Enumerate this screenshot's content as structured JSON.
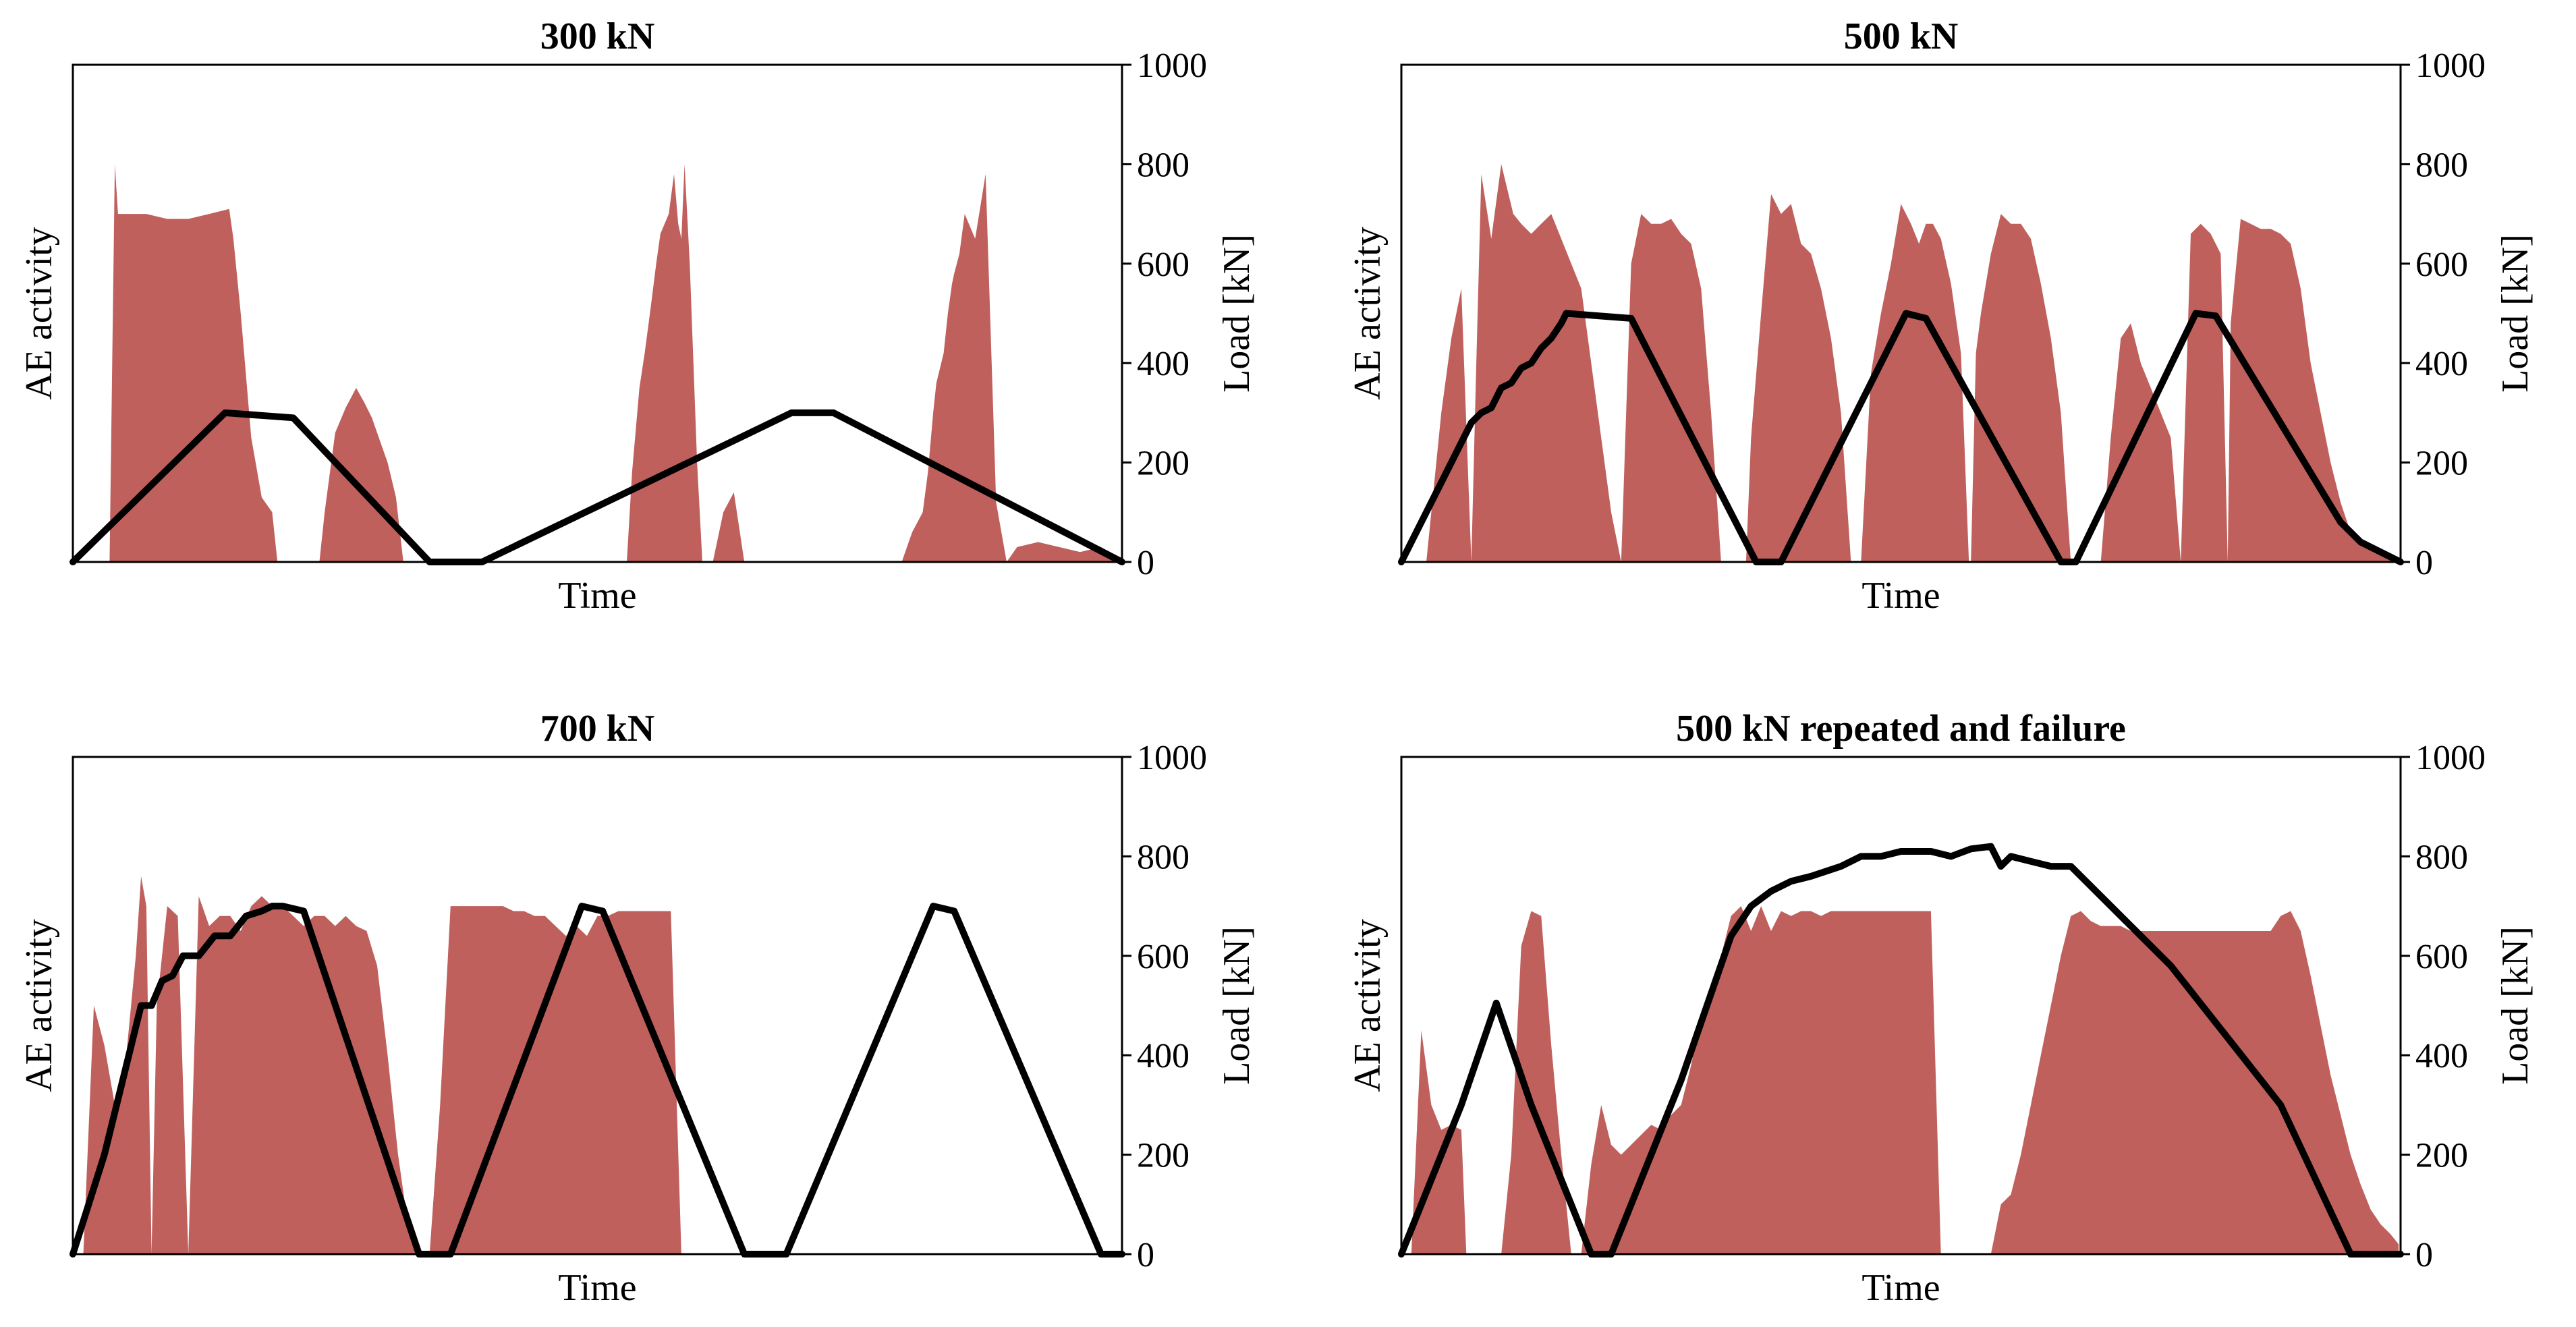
{
  "colors": {
    "ae_fill": "#c0605d",
    "load_line": "#000000",
    "axes": "#000000"
  },
  "chart_data": [
    {
      "type": "area",
      "title": "300 kN",
      "xlabel": "Time",
      "ylabel_left": "AE activity",
      "ylabel_right": "Load [kN]",
      "xlim": [
        0,
        100
      ],
      "ylim_right": [
        0,
        1000
      ],
      "right_ticks": [
        0,
        200,
        400,
        600,
        800,
        1000
      ],
      "series": [
        {
          "name": "AE activity",
          "kind": "area",
          "x": [
            3.2,
            3.5,
            4,
            4.3,
            5,
            7,
            9,
            11,
            13,
            14.9,
            15.3,
            16,
            17,
            18,
            19,
            19.5,
            20,
            21,
            22,
            23.5,
            24,
            24.5,
            25,
            26,
            27,
            27.8,
            28.5,
            29.5,
            30,
            30.8,
            31.5,
            32.2,
            33,
            34,
            35,
            37,
            38,
            40,
            42,
            44,
            46,
            47,
            48,
            49,
            50,
            51,
            52,
            52.8,
            53.3,
            54,
            54.5,
            55,
            55.6,
            56,
            56.8,
            57.3,
            57.7,
            58,
            58.3,
            58.8,
            59.5,
            60,
            61,
            62,
            63,
            64,
            65,
            66,
            67,
            68,
            68.5,
            69,
            69.5,
            70,
            71,
            73,
            74.5,
            75,
            76,
            77,
            78,
            79,
            80,
            81,
            81.5,
            82,
            82.3,
            83,
            83.4,
            83.8,
            84,
            84.5,
            85,
            86,
            87,
            88,
            89,
            90,
            92,
            94,
            96,
            98,
            100
          ],
          "y": [
            0,
            0,
            800,
            700,
            700,
            700,
            690,
            690,
            700,
            710,
            650,
            500,
            250,
            130,
            100,
            0,
            0,
            0,
            0,
            0,
            100,
            180,
            260,
            310,
            350,
            320,
            290,
            230,
            200,
            130,
            0,
            0,
            0,
            0,
            0,
            0,
            0,
            0,
            0,
            0,
            0,
            0,
            0,
            0,
            0,
            0,
            0,
            0,
            180,
            350,
            420,
            500,
            600,
            660,
            700,
            780,
            680,
            650,
            800,
            600,
            200,
            0,
            0,
            100,
            140,
            0,
            0,
            0,
            0,
            0,
            0,
            0,
            0,
            0,
            0,
            0,
            0,
            0,
            0,
            0,
            0,
            0,
            60,
            100,
            180,
            300,
            360,
            420,
            500,
            560,
            580,
            620,
            700,
            650,
            780,
            120,
            0,
            30,
            40,
            30,
            20,
            30,
            0
          ]
        },
        {
          "name": "Load [kN]",
          "kind": "line",
          "x": [
            0,
            14.5,
            21,
            34,
            39,
            68.5,
            72.5,
            100
          ],
          "y": [
            0,
            300,
            290,
            0,
            0,
            300,
            300,
            0
          ]
        }
      ]
    },
    {
      "type": "area",
      "title": "500 kN",
      "xlabel": "Time",
      "ylabel_left": "AE activity",
      "ylabel_right": "Load [kN]",
      "xlim": [
        0,
        100
      ],
      "ylim_right": [
        0,
        1000
      ],
      "right_ticks": [
        0,
        200,
        400,
        600,
        800,
        1000
      ],
      "series": [
        {
          "name": "AE activity",
          "kind": "area",
          "x": [
            2.5,
            3,
            4,
            5,
            6,
            7,
            7.5,
            8,
            9,
            10,
            11.2,
            12,
            13,
            14,
            15,
            16,
            17,
            18,
            19,
            20,
            21,
            22,
            23,
            24,
            25,
            26,
            27,
            28,
            29,
            30,
            31,
            32,
            33,
            34,
            34.5,
            35,
            36,
            37,
            38,
            39,
            40,
            41,
            42,
            43,
            44,
            45,
            46,
            47,
            48,
            49,
            50,
            51,
            51.8,
            52.5,
            53.2,
            54,
            55,
            56,
            56.8,
            57,
            57.5,
            58,
            59,
            60,
            61,
            62,
            63,
            64,
            65,
            66,
            67,
            68,
            69,
            70,
            71,
            72,
            73,
            74,
            75,
            76,
            77,
            78,
            79,
            80,
            81,
            82,
            82.7,
            83,
            84,
            85,
            86,
            87,
            88,
            89,
            90,
            91,
            92,
            93,
            94,
            95,
            96,
            97,
            98,
            99,
            99.8
          ],
          "y": [
            0,
            100,
            300,
            450,
            550,
            0,
            400,
            780,
            650,
            800,
            700,
            680,
            660,
            680,
            700,
            650,
            600,
            550,
            400,
            250,
            100,
            0,
            600,
            700,
            680,
            680,
            690,
            660,
            640,
            550,
            300,
            0,
            0,
            0,
            0,
            250,
            500,
            740,
            700,
            720,
            640,
            620,
            550,
            450,
            300,
            0,
            0,
            380,
            500,
            600,
            720,
            680,
            640,
            680,
            680,
            650,
            560,
            420,
            0,
            0,
            420,
            500,
            620,
            700,
            680,
            680,
            650,
            560,
            450,
            300,
            0,
            0,
            0,
            0,
            250,
            450,
            480,
            400,
            350,
            300,
            250,
            0,
            660,
            680,
            660,
            620,
            0,
            480,
            690,
            680,
            670,
            670,
            660,
            640,
            550,
            400,
            300,
            200,
            120,
            60,
            40,
            30,
            20,
            10,
            0
          ]
        },
        {
          "name": "Load [kN]",
          "kind": "line",
          "x": [
            0,
            7,
            8,
            9,
            10,
            11,
            12,
            13,
            14,
            15,
            16,
            16.5,
            23,
            35.5,
            38,
            50.5,
            52.5,
            66,
            67.5,
            79.5,
            81.5,
            94,
            96,
            100
          ],
          "y": [
            0,
            280,
            300,
            310,
            350,
            360,
            390,
            400,
            430,
            450,
            480,
            500,
            490,
            0,
            0,
            500,
            490,
            0,
            0,
            500,
            495,
            80,
            40,
            0
          ]
        }
      ]
    },
    {
      "type": "area",
      "title": "700 kN",
      "xlabel": "Time",
      "ylabel_left": "AE activity",
      "ylabel_right": "Load [kN]",
      "xlim": [
        0,
        100
      ],
      "ylim_right": [
        0,
        1000
      ],
      "right_ticks": [
        0,
        200,
        400,
        600,
        800,
        1000
      ],
      "series": [
        {
          "name": "AE activity",
          "kind": "area",
          "x": [
            1,
            2,
            3,
            4,
            5,
            6,
            6.5,
            7,
            7.5,
            8,
            9,
            10,
            11,
            12,
            13,
            14,
            15,
            16,
            17,
            18,
            19,
            20,
            21,
            22,
            23,
            24,
            25,
            26,
            27,
            28,
            29,
            30,
            31,
            32,
            33,
            34,
            35,
            36,
            37,
            38,
            39,
            40,
            41,
            42,
            43,
            44,
            45,
            46,
            47,
            48,
            49,
            50,
            51,
            52,
            53,
            54,
            55,
            56,
            57,
            58,
            59,
            60,
            61,
            62,
            63,
            64,
            65,
            66,
            67,
            68,
            69,
            70,
            71,
            72,
            73,
            74,
            75,
            76,
            77,
            78,
            79,
            80,
            81,
            82,
            83,
            84,
            85,
            86,
            87,
            88,
            89,
            90,
            91,
            92,
            93,
            94,
            95,
            96,
            97,
            98,
            99,
            99.8
          ],
          "y": [
            0,
            500,
            420,
            300,
            380,
            600,
            760,
            700,
            0,
            500,
            700,
            680,
            0,
            720,
            660,
            680,
            680,
            650,
            700,
            720,
            700,
            700,
            680,
            660,
            680,
            680,
            660,
            680,
            660,
            650,
            580,
            400,
            200,
            50,
            0,
            0,
            300,
            700,
            700,
            700,
            700,
            700,
            700,
            690,
            690,
            680,
            680,
            660,
            640,
            660,
            640,
            680,
            680,
            690,
            690,
            690,
            690,
            690,
            690,
            0,
            0,
            0,
            0,
            0,
            0,
            0,
            0,
            0,
            0,
            0,
            0,
            0,
            0,
            0,
            0,
            0,
            0,
            0,
            0,
            0,
            0,
            0,
            0,
            0,
            0,
            0,
            0,
            0,
            0,
            0,
            0,
            0,
            0,
            0,
            0,
            0,
            0,
            0,
            0,
            0,
            0,
            0
          ]
        },
        {
          "name": "Load [kN]",
          "kind": "line",
          "x": [
            0,
            3,
            6.5,
            7.5,
            8.5,
            9.5,
            10.5,
            12,
            13.5,
            15,
            16.5,
            18,
            19,
            20,
            22,
            33,
            36,
            48.5,
            50.5,
            64,
            68,
            82,
            84,
            98,
            100
          ],
          "y": [
            0,
            200,
            500,
            500,
            550,
            560,
            600,
            600,
            640,
            640,
            680,
            690,
            700,
            700,
            690,
            0,
            0,
            700,
            690,
            0,
            0,
            700,
            690,
            0,
            0
          ]
        }
      ]
    },
    {
      "type": "area",
      "title": "500 kN repeated and failure",
      "xlabel": "Time",
      "ylabel_left": "AE activity",
      "ylabel_right": "Load [kN]",
      "xlim": [
        0,
        100
      ],
      "ylim_right": [
        0,
        1000
      ],
      "right_ticks": [
        0,
        200,
        400,
        600,
        800,
        1000
      ],
      "series": [
        {
          "name": "AE activity",
          "kind": "area",
          "x": [
            1,
            2,
            3,
            4,
            5,
            6,
            6.5,
            7,
            7.5,
            8,
            9,
            10,
            11,
            12,
            13,
            14,
            15,
            16,
            17,
            18,
            19,
            20,
            21,
            22,
            23,
            24,
            25,
            26,
            27,
            28,
            29,
            30,
            31,
            32,
            33,
            34,
            35,
            36,
            37,
            38,
            39,
            40,
            41,
            42,
            43,
            44,
            45,
            46,
            47,
            48,
            49,
            50,
            51,
            52,
            53,
            54,
            55,
            56,
            57,
            58,
            59,
            60,
            61,
            62,
            63,
            64,
            65,
            66,
            67,
            68,
            69,
            70,
            71,
            72,
            73,
            74,
            75,
            76,
            77,
            78,
            79,
            80,
            81,
            82,
            83,
            84,
            85,
            86,
            87,
            88,
            89,
            90,
            91,
            92,
            93,
            94,
            95,
            96,
            97,
            98,
            99,
            99.8
          ],
          "y": [
            0,
            450,
            300,
            250,
            260,
            250,
            0,
            0,
            0,
            0,
            0,
            0,
            200,
            620,
            690,
            680,
            420,
            200,
            0,
            0,
            180,
            300,
            220,
            200,
            220,
            240,
            260,
            250,
            280,
            300,
            380,
            480,
            520,
            600,
            680,
            700,
            650,
            700,
            650,
            690,
            680,
            690,
            690,
            680,
            690,
            690,
            690,
            690,
            690,
            690,
            690,
            690,
            690,
            690,
            690,
            0,
            0,
            0,
            0,
            0,
            0,
            100,
            120,
            200,
            300,
            400,
            500,
            600,
            680,
            690,
            670,
            660,
            660,
            660,
            650,
            650,
            650,
            650,
            650,
            650,
            650,
            650,
            650,
            650,
            650,
            650,
            650,
            650,
            650,
            680,
            690,
            650,
            560,
            460,
            360,
            280,
            200,
            140,
            90,
            60,
            40,
            20
          ]
        },
        {
          "name": "Load [kN]",
          "kind": "line",
          "x": [
            0,
            6,
            9.5,
            13,
            19,
            21,
            24,
            28,
            33,
            35,
            37,
            39,
            41,
            44,
            46,
            48,
            50,
            53,
            55,
            57,
            59,
            60,
            61,
            63,
            65,
            67,
            77,
            88,
            95,
            100
          ],
          "y": [
            0,
            300,
            505,
            300,
            0,
            0,
            150,
            350,
            640,
            700,
            730,
            750,
            760,
            780,
            800,
            800,
            810,
            810,
            800,
            815,
            820,
            780,
            800,
            790,
            780,
            780,
            580,
            300,
            0,
            0
          ]
        }
      ]
    }
  ]
}
